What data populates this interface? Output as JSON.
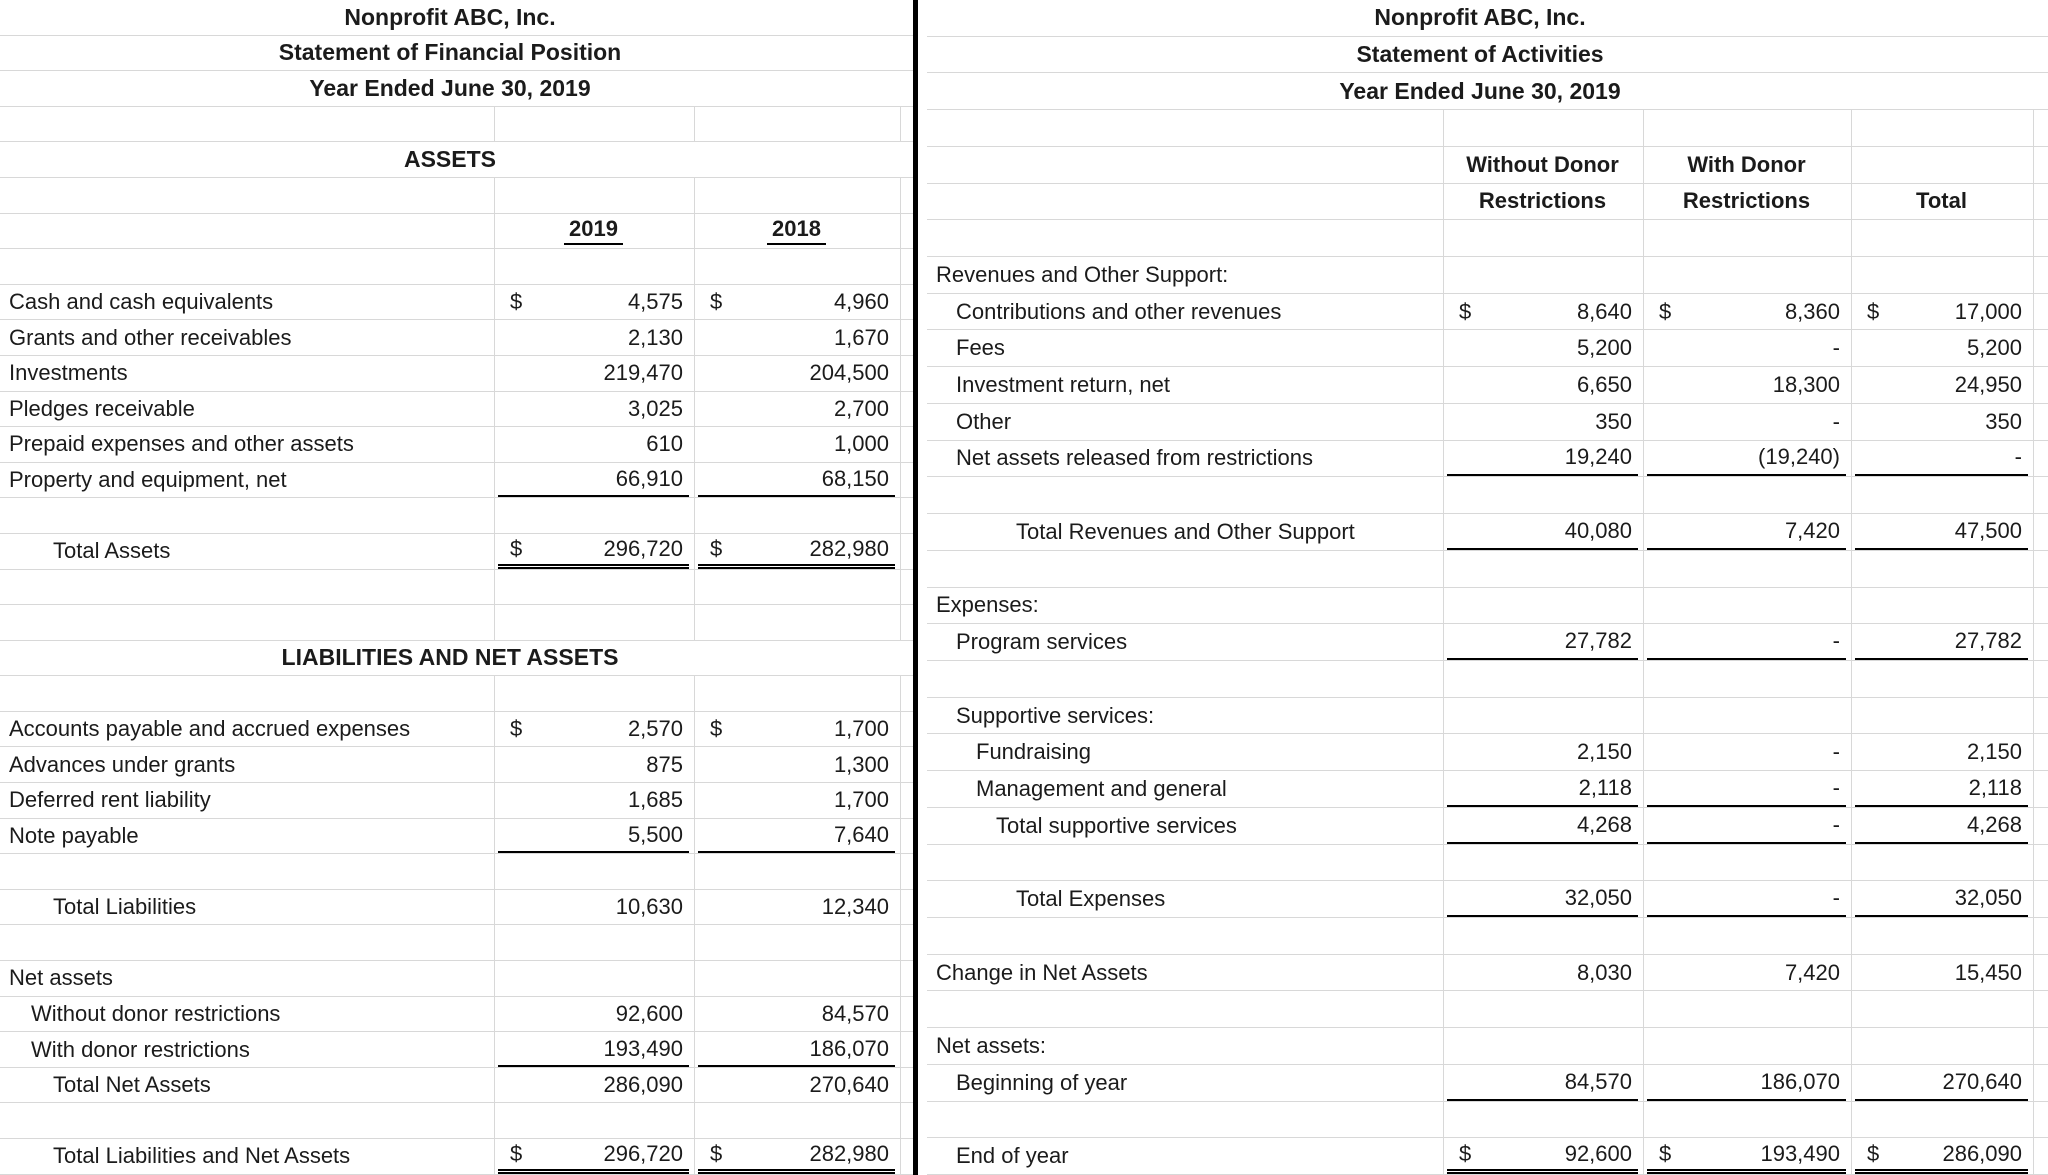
{
  "meta": {
    "background_color": "#ffffff",
    "gridline_color": "#d8d8d8",
    "text_color": "#1b1b1b",
    "divider_color": "#000000"
  },
  "left_statement": {
    "rows": [
      {
        "kind": "title",
        "label": "Nonprofit ABC, Inc."
      },
      {
        "kind": "title",
        "label": "Statement of Financial Position"
      },
      {
        "kind": "title",
        "label": "Year Ended June 30, 2019"
      },
      {
        "kind": "blank"
      },
      {
        "kind": "section",
        "label": "ASSETS"
      },
      {
        "kind": "blank"
      },
      {
        "kind": "colhead",
        "cells": [
          {
            "v": "2019"
          },
          {
            "v": "2018"
          }
        ]
      },
      {
        "kind": "blank"
      },
      {
        "kind": "data",
        "label": "Cash and cash equivalents",
        "cells": [
          {
            "d": "$",
            "v": "4,575"
          },
          {
            "d": "$",
            "v": "4,960"
          }
        ]
      },
      {
        "kind": "data",
        "label": "Grants and other receivables",
        "cells": [
          {
            "v": "2,130"
          },
          {
            "v": "1,670"
          }
        ]
      },
      {
        "kind": "data",
        "label": "Investments",
        "cells": [
          {
            "v": "219,470"
          },
          {
            "v": "204,500"
          }
        ]
      },
      {
        "kind": "data",
        "label": "Pledges receivable",
        "cells": [
          {
            "v": "3,025"
          },
          {
            "v": "2,700"
          }
        ]
      },
      {
        "kind": "data",
        "label": "Prepaid expenses and other assets",
        "cells": [
          {
            "v": "610"
          },
          {
            "v": "1,000"
          }
        ]
      },
      {
        "kind": "data",
        "label": "Property and equipment, net",
        "cells": [
          {
            "v": "66,910",
            "u": "single"
          },
          {
            "v": "68,150",
            "u": "single"
          }
        ]
      },
      {
        "kind": "blank"
      },
      {
        "kind": "data",
        "label": "Total Assets",
        "indent": 2,
        "cells": [
          {
            "d": "$",
            "v": "296,720",
            "u": "double"
          },
          {
            "d": "$",
            "v": "282,980",
            "u": "double"
          }
        ]
      },
      {
        "kind": "blank"
      },
      {
        "kind": "blank"
      },
      {
        "kind": "section",
        "label": "LIABILITIES AND NET ASSETS"
      },
      {
        "kind": "blank"
      },
      {
        "kind": "data",
        "label": "Accounts payable and accrued expenses",
        "cells": [
          {
            "d": "$",
            "v": "2,570"
          },
          {
            "d": "$",
            "v": "1,700"
          }
        ]
      },
      {
        "kind": "data",
        "label": "Advances under grants",
        "cells": [
          {
            "v": "875"
          },
          {
            "v": "1,300"
          }
        ]
      },
      {
        "kind": "data",
        "label": "Deferred rent liability",
        "cells": [
          {
            "v": "1,685"
          },
          {
            "v": "1,700"
          }
        ]
      },
      {
        "kind": "data",
        "label": "Note payable",
        "cells": [
          {
            "v": "5,500",
            "u": "single"
          },
          {
            "v": "7,640",
            "u": "single"
          }
        ]
      },
      {
        "kind": "blank"
      },
      {
        "kind": "data",
        "label": "Total Liabilities",
        "indent": 2,
        "cells": [
          {
            "v": "10,630"
          },
          {
            "v": "12,340"
          }
        ]
      },
      {
        "kind": "blank"
      },
      {
        "kind": "data",
        "label": "Net assets",
        "cells": [
          {},
          {}
        ]
      },
      {
        "kind": "data",
        "label": "Without donor restrictions",
        "indent": 1,
        "cells": [
          {
            "v": "92,600"
          },
          {
            "v": "84,570"
          }
        ]
      },
      {
        "kind": "data",
        "label": "With donor restrictions",
        "indent": 1,
        "cells": [
          {
            "v": "193,490",
            "u": "single"
          },
          {
            "v": "186,070",
            "u": "single"
          }
        ]
      },
      {
        "kind": "data",
        "label": "Total Net Assets",
        "indent": 2,
        "cells": [
          {
            "v": "286,090"
          },
          {
            "v": "270,640"
          }
        ]
      },
      {
        "kind": "blank"
      },
      {
        "kind": "data",
        "label": "Total Liabilities and Net Assets",
        "indent": 2,
        "cells": [
          {
            "d": "$",
            "v": "296,720",
            "u": "double"
          },
          {
            "d": "$",
            "v": "282,980",
            "u": "double"
          }
        ]
      }
    ]
  },
  "right_statement": {
    "rows": [
      {
        "kind": "title",
        "label": "Nonprofit ABC, Inc."
      },
      {
        "kind": "title",
        "label": "Statement of Activities"
      },
      {
        "kind": "title",
        "label": "Year Ended June 30, 2019"
      },
      {
        "kind": "blank"
      },
      {
        "kind": "colhead_plain",
        "cells": [
          {
            "v": "Without Donor"
          },
          {
            "v": "With Donor"
          },
          {
            "v": ""
          }
        ]
      },
      {
        "kind": "colhead_plain",
        "cells": [
          {
            "v": "Restrictions"
          },
          {
            "v": "Restrictions"
          },
          {
            "v": "Total"
          }
        ]
      },
      {
        "kind": "blank"
      },
      {
        "kind": "data",
        "label": "Revenues and Other Support:",
        "cells": [
          {},
          {},
          {}
        ]
      },
      {
        "kind": "data",
        "label": "Contributions and other revenues",
        "indent": 1,
        "cells": [
          {
            "d": "$",
            "v": "8,640"
          },
          {
            "d": "$",
            "v": "8,360"
          },
          {
            "d": "$",
            "v": "17,000"
          }
        ]
      },
      {
        "kind": "data",
        "label": "Fees",
        "indent": 1,
        "cells": [
          {
            "v": "5,200"
          },
          {
            "v": "-"
          },
          {
            "v": "5,200"
          }
        ]
      },
      {
        "kind": "data",
        "label": "Investment return, net",
        "indent": 1,
        "cells": [
          {
            "v": "6,650"
          },
          {
            "v": "18,300"
          },
          {
            "v": "24,950"
          }
        ]
      },
      {
        "kind": "data",
        "label": "Other",
        "indent": 1,
        "cells": [
          {
            "v": "350"
          },
          {
            "v": "-"
          },
          {
            "v": "350"
          }
        ]
      },
      {
        "kind": "data",
        "label": "Net assets released from restrictions",
        "indent": 1,
        "cells": [
          {
            "v": "19,240",
            "u": "single"
          },
          {
            "v": "(19,240)",
            "u": "single"
          },
          {
            "v": "-",
            "u": "single"
          }
        ]
      },
      {
        "kind": "blank"
      },
      {
        "kind": "data",
        "label": "Total Revenues and Other Support",
        "indent": 4,
        "cells": [
          {
            "v": "40,080",
            "u": "single"
          },
          {
            "v": "7,420",
            "u": "single"
          },
          {
            "v": "47,500",
            "u": "single"
          }
        ]
      },
      {
        "kind": "blank"
      },
      {
        "kind": "data",
        "label": "Expenses:",
        "cells": [
          {},
          {},
          {}
        ]
      },
      {
        "kind": "data",
        "label": "Program services",
        "indent": 1,
        "cells": [
          {
            "v": "27,782",
            "u": "single"
          },
          {
            "v": "-",
            "u": "single"
          },
          {
            "v": "27,782",
            "u": "single"
          }
        ]
      },
      {
        "kind": "blank"
      },
      {
        "kind": "data",
        "label": "Supportive services:",
        "indent": 1,
        "cells": [
          {},
          {},
          {}
        ]
      },
      {
        "kind": "data",
        "label": "Fundraising",
        "indent": 2,
        "cells": [
          {
            "v": "2,150"
          },
          {
            "v": "-"
          },
          {
            "v": "2,150"
          }
        ]
      },
      {
        "kind": "data",
        "label": "Management and general",
        "indent": 2,
        "cells": [
          {
            "v": "2,118",
            "u": "single"
          },
          {
            "v": "-",
            "u": "single"
          },
          {
            "v": "2,118",
            "u": "single"
          }
        ]
      },
      {
        "kind": "data",
        "label": "Total supportive services",
        "indent": 3,
        "cells": [
          {
            "v": "4,268",
            "u": "single"
          },
          {
            "v": "-",
            "u": "single"
          },
          {
            "v": "4,268",
            "u": "single"
          }
        ]
      },
      {
        "kind": "blank"
      },
      {
        "kind": "data",
        "label": "Total Expenses",
        "indent": 4,
        "cells": [
          {
            "v": "32,050",
            "u": "single"
          },
          {
            "v": "-",
            "u": "single"
          },
          {
            "v": "32,050",
            "u": "single"
          }
        ]
      },
      {
        "kind": "blank"
      },
      {
        "kind": "data",
        "label": "Change in Net Assets",
        "cells": [
          {
            "v": "8,030"
          },
          {
            "v": "7,420"
          },
          {
            "v": "15,450"
          }
        ]
      },
      {
        "kind": "blank"
      },
      {
        "kind": "data",
        "label": "Net assets:",
        "cells": [
          {},
          {},
          {}
        ]
      },
      {
        "kind": "data",
        "label": "Beginning of year",
        "indent": 1,
        "cells": [
          {
            "v": "84,570",
            "u": "single"
          },
          {
            "v": "186,070",
            "u": "single"
          },
          {
            "v": "270,640",
            "u": "single"
          }
        ]
      },
      {
        "kind": "blank"
      },
      {
        "kind": "data",
        "label": "End of year",
        "indent": 1,
        "cells": [
          {
            "d": "$",
            "v": "92,600",
            "u": "double"
          },
          {
            "d": "$",
            "v": "193,490",
            "u": "double"
          },
          {
            "d": "$",
            "v": "286,090",
            "u": "double"
          }
        ]
      }
    ]
  }
}
